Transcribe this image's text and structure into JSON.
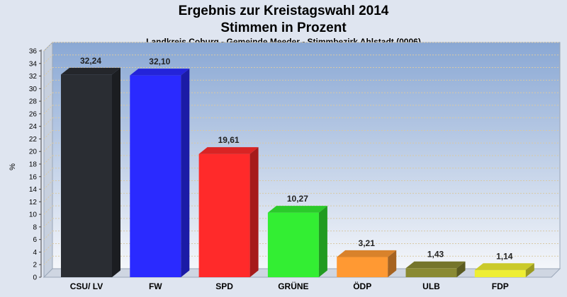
{
  "chart_data": {
    "type": "bar",
    "title_line1": "Ergebnis zur Kreistagswahl 2014",
    "title_line2": "Stimmen in Prozent",
    "subtitle": "Landkreis Coburg - Gemeinde Meeder - Stimmbezirk Ahlstadt (0006)",
    "ylabel": "%",
    "xlabel": "",
    "ylim": [
      0,
      36
    ],
    "ytick_step": 2,
    "grid": true,
    "categories": [
      "CSU/ LV",
      "FW",
      "SPD",
      "GRÜNE",
      "ÖDP",
      "ULB",
      "FDP"
    ],
    "values": [
      32.24,
      32.1,
      19.61,
      10.27,
      3.21,
      1.43,
      1.14
    ],
    "value_labels": [
      "32,24",
      "32,10",
      "19,61",
      "10,27",
      "3,21",
      "1,43",
      "1,14"
    ],
    "colors": [
      "#2a2d33",
      "#2a2aff",
      "#ff2a2a",
      "#33ee33",
      "#ff9933",
      "#8a8a33",
      "#eeee33"
    ]
  }
}
